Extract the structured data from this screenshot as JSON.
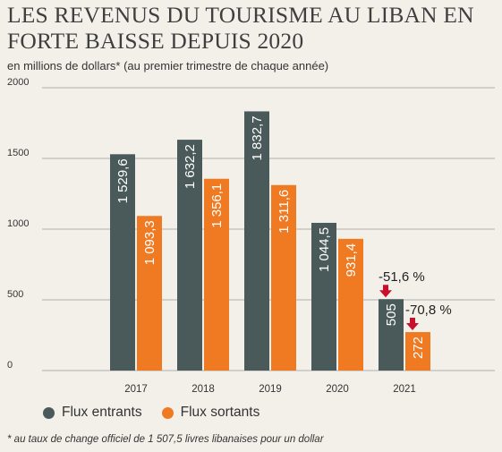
{
  "title": "LES REVENUS DU TOURISME AU LIBAN EN FORTE BAISSE DEPUIS 2020",
  "subtitle": "en millions de dollars* (au premier trimestre de chaque année)",
  "footnote": "* au taux de change officiel de 1 507,5 livres libanaises pour un dollar",
  "colors": {
    "entrants": "#4a5a5a",
    "sortants": "#f07a22",
    "arrow": "#c8102e"
  },
  "chart_data": {
    "type": "bar",
    "categories": [
      "2017",
      "2018",
      "2019",
      "2020",
      "2021"
    ],
    "series": [
      {
        "name": "Flux entrants",
        "values": [
          1529.6,
          1632.2,
          1832.7,
          1044.5,
          505
        ],
        "labels": [
          "1 529,6",
          "1 632,2",
          "1 832,7",
          "1 044,5",
          "505"
        ]
      },
      {
        "name": "Flux sortants",
        "values": [
          1093.3,
          1356.1,
          1311.6,
          931.4,
          272
        ],
        "labels": [
          "1 093,3",
          "1 356,1",
          "1 311,6",
          "931,4",
          "272"
        ]
      }
    ],
    "ylim": [
      0,
      2000
    ],
    "yticks": [
      0,
      500,
      1000,
      1500,
      2000
    ],
    "ytick_labels": [
      "0",
      "500",
      "1000",
      "1500",
      "2000"
    ],
    "grid": true,
    "legend_position": "bottom-left",
    "annotations": [
      {
        "category": "2021",
        "series": "Flux entrants",
        "text": "-51,6 %"
      },
      {
        "category": "2021",
        "series": "Flux sortants",
        "text": "-70,8 %"
      }
    ]
  }
}
